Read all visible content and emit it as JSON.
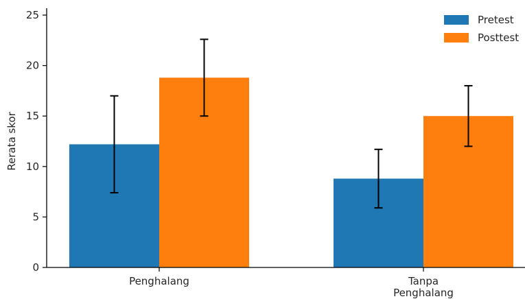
{
  "chart_data": {
    "type": "bar",
    "title": "",
    "xlabel": "",
    "ylabel": "Rerata skor",
    "ylim": [
      0,
      25
    ],
    "yticks": [
      0,
      5,
      10,
      15,
      20,
      25
    ],
    "categories": [
      [
        "Penghalang"
      ],
      [
        "Tanpa",
        "Penghalang"
      ]
    ],
    "series": [
      {
        "name": "Pretest",
        "color": "#1f77b4",
        "values": [
          12.2,
          8.8
        ],
        "error": [
          4.8,
          2.9
        ]
      },
      {
        "name": "Posttest",
        "color": "#ff7f0e",
        "values": [
          18.8,
          15.0
        ],
        "error": [
          3.8,
          3.0
        ]
      }
    ],
    "grid": false,
    "legend": "top-right"
  }
}
